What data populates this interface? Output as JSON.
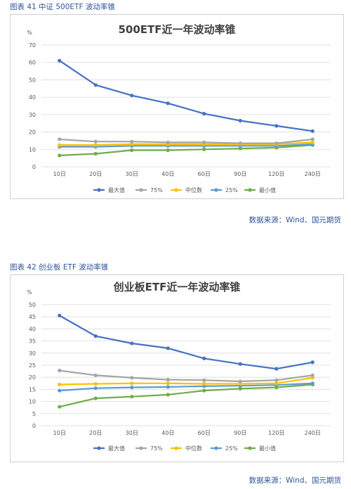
{
  "figures": [
    {
      "caption": "图表 41  中证 500ETF 波动率锥",
      "source": "数据来源：Wind、国元期货"
    },
    {
      "caption": "图表 42  创业板 ETF 波动率锥",
      "source": "数据来源：Wind、国元期货"
    }
  ],
  "chart_data": [
    {
      "type": "line",
      "title": "500ETF近一年波动率锥",
      "ylabel": "%",
      "ylim": [
        0,
        70
      ],
      "ytick_step": 10,
      "grid": true,
      "legend_position": "bottom",
      "categories": [
        "10日",
        "20日",
        "30日",
        "40日",
        "60日",
        "90日",
        "120日",
        "240日"
      ],
      "series": [
        {
          "name": "最大值",
          "color": "#4472c4",
          "values": [
            61,
            47,
            41,
            36.5,
            30.5,
            26.5,
            23.5,
            20.5
          ]
        },
        {
          "name": "75%",
          "color": "#a5a5a5",
          "values": [
            15.8,
            14.5,
            14.5,
            14,
            14,
            13.5,
            13.5,
            15.8
          ]
        },
        {
          "name": "中位数",
          "color": "#ffc000",
          "values": [
            12.5,
            12.5,
            13,
            13,
            13,
            13,
            13,
            14
          ]
        },
        {
          "name": "25%",
          "color": "#5b9bd5",
          "values": [
            11.5,
            11.5,
            12,
            12,
            12,
            12,
            12,
            13
          ]
        },
        {
          "name": "最小值",
          "color": "#70ad47",
          "values": [
            6.5,
            7.5,
            9.5,
            9.5,
            10,
            10.5,
            11,
            12.5
          ]
        }
      ]
    },
    {
      "type": "line",
      "title": "创业板ETF近一年波动率锥",
      "ylabel": "%",
      "ylim": [
        0,
        50
      ],
      "ytick_step": 5,
      "grid": true,
      "legend_position": "bottom",
      "categories": [
        "10日",
        "20日",
        "30日",
        "40日",
        "60日",
        "90日",
        "120日",
        "240日"
      ],
      "series": [
        {
          "name": "最大值",
          "color": "#4472c4",
          "values": [
            45.5,
            37,
            34,
            32,
            27.8,
            25.5,
            23.5,
            26.2
          ]
        },
        {
          "name": "75%",
          "color": "#a5a5a5",
          "values": [
            22.8,
            20.8,
            19.8,
            19,
            18.8,
            18.3,
            18.8,
            20.8
          ]
        },
        {
          "name": "中位数",
          "color": "#ffc000",
          "values": [
            17,
            17.3,
            17.5,
            17.5,
            17.3,
            17.3,
            17.5,
            19.8
          ]
        },
        {
          "name": "25%",
          "color": "#5b9bd5",
          "values": [
            14.5,
            15.5,
            15.8,
            16,
            16.3,
            16.5,
            16.8,
            17.5
          ]
        },
        {
          "name": "最小值",
          "color": "#70ad47",
          "values": [
            7.8,
            11.3,
            12,
            12.8,
            14.5,
            15.3,
            15.8,
            17
          ]
        }
      ]
    }
  ]
}
